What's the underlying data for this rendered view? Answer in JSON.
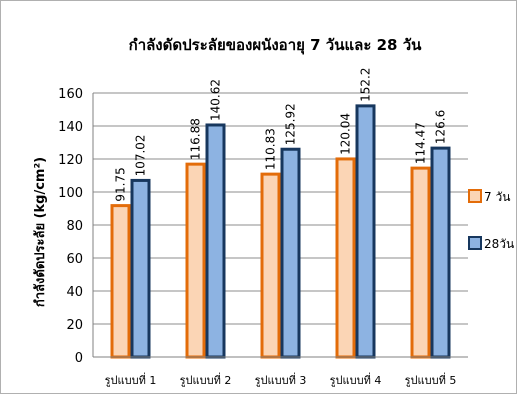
{
  "chart_data": {
    "type": "bar",
    "title": "กำลังดัดประลัยของผนังอายุ 7 วันและ 28 วัน",
    "ylabel": "กำลังดัดประลัย (kg/cm²)",
    "xlabel": "",
    "ylim": [
      0,
      160
    ],
    "yticks": [
      0,
      20,
      40,
      60,
      80,
      100,
      120,
      140,
      160
    ],
    "grid": true,
    "legend_position": "right",
    "categories": [
      "รูปแบบที่ 1",
      "รูปแบบที่ 2",
      "รูปแบบที่ 3",
      "รูปแบบที่ 4",
      "รูปแบบที่ 5"
    ],
    "series": [
      {
        "name": "7 วัน",
        "values": [
          91.75,
          116.88,
          110.83,
          120.04,
          114.47
        ],
        "labels": [
          "91.75",
          "116.88",
          "110.83",
          "120.04",
          "114.47"
        ],
        "fill": "#FBD5B5",
        "stroke": "#E36C09"
      },
      {
        "name": "28วัน",
        "values": [
          107.02,
          140.62,
          125.92,
          152.2,
          126.6
        ],
        "labels": [
          "107.02",
          "140.62",
          "125.92",
          "152.2",
          "126.6"
        ],
        "fill": "#8DB3E2",
        "stroke": "#17375E"
      }
    ]
  }
}
